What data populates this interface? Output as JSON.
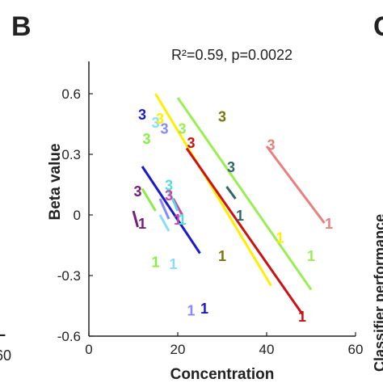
{
  "panel": {
    "label": "B",
    "next_label": "C"
  },
  "left_cut": {
    "tick": "60",
    "glyph": "L"
  },
  "right_cut": {
    "text": "Classifier performance"
  },
  "chart_data": {
    "type": "line",
    "annotation": "R²=0.59, p=0.0022",
    "xlabel": "Concentration",
    "ylabel": "Beta value",
    "xlim": [
      0,
      60
    ],
    "ylim": [
      -0.6,
      0.6
    ],
    "xticks": [
      0,
      20,
      40,
      60
    ],
    "yticks": [
      0.6,
      0.3,
      0,
      -0.3,
      -0.6
    ],
    "grid": false,
    "series": [
      {
        "color": "#7a1a7a",
        "line": [
          [
            10,
            0.02
          ],
          [
            11,
            -0.06
          ]
        ],
        "points": [
          {
            "label": "3",
            "x": 11,
            "y": 0.12
          },
          {
            "label": "1",
            "x": 12,
            "y": -0.04
          }
        ]
      },
      {
        "color": "#88ee44",
        "line": [
          [
            12,
            0.13
          ],
          [
            15,
            0.02
          ]
        ],
        "points": [
          {
            "label": "3",
            "x": 13,
            "y": 0.38
          },
          {
            "label": "1",
            "x": 15,
            "y": -0.23
          }
        ]
      },
      {
        "color": "#1a1acc",
        "line": [
          [
            12,
            0.24
          ],
          [
            25,
            -0.19
          ]
        ],
        "points": [
          {
            "label": "3",
            "x": 12,
            "y": 0.5
          },
          {
            "label": "1",
            "x": 26,
            "y": -0.46
          }
        ]
      },
      {
        "color": "#88ddff",
        "line": [
          [
            16,
            0.0
          ],
          [
            18,
            -0.08
          ]
        ],
        "points": [
          {
            "label": "3",
            "x": 15,
            "y": 0.46
          },
          {
            "label": "1",
            "x": 19,
            "y": -0.24
          }
        ]
      },
      {
        "color": "#8888ff",
        "line": [
          [
            16,
            0.08
          ],
          [
            18,
            -0.02
          ]
        ],
        "points": [
          {
            "label": "3",
            "x": 17,
            "y": 0.43
          },
          {
            "label": "1",
            "x": 23,
            "y": -0.47
          }
        ]
      },
      {
        "color": "#cc44aa",
        "line": [
          [
            19,
            0.08
          ],
          [
            21,
            0.0
          ]
        ],
        "points": [
          {
            "label": "3",
            "x": 18,
            "y": 0.1
          },
          {
            "label": "1",
            "x": 20,
            "y": -0.02
          }
        ]
      },
      {
        "color": "#55dddd",
        "line": [
          [
            18,
            0.12
          ],
          [
            20,
            0.02
          ]
        ],
        "points": [
          {
            "label": "3",
            "x": 18,
            "y": 0.15
          },
          {
            "label": "1",
            "x": 21,
            "y": -0.02
          }
        ]
      },
      {
        "color": "#ffee00",
        "line": [
          [
            15,
            0.6
          ],
          [
            41,
            -0.35
          ]
        ],
        "points": [
          {
            "label": "3",
            "x": 16,
            "y": 0.48
          },
          {
            "label": "1",
            "x": 43,
            "y": -0.11
          }
        ]
      },
      {
        "color": "#cc1111",
        "line": [
          [
            22,
            0.33
          ],
          [
            48,
            -0.49
          ]
        ],
        "points": [
          {
            "label": "3",
            "x": 23,
            "y": 0.36
          },
          {
            "label": "1",
            "x": 48,
            "y": -0.5
          }
        ]
      },
      {
        "color": "#99ee55",
        "line": [
          [
            20,
            0.58
          ],
          [
            50,
            -0.37
          ]
        ],
        "points": [
          {
            "label": "3",
            "x": 21,
            "y": 0.43
          },
          {
            "label": "1",
            "x": 50,
            "y": -0.2
          }
        ]
      },
      {
        "color": "#777711",
        "line": [],
        "points": [
          {
            "label": "3",
            "x": 30,
            "y": 0.49
          },
          {
            "label": "1",
            "x": 30,
            "y": -0.2
          }
        ]
      },
      {
        "color": "#336666",
        "line": [
          [
            31,
            0.14
          ],
          [
            33,
            0.08
          ]
        ],
        "points": [
          {
            "label": "3",
            "x": 32,
            "y": 0.24
          },
          {
            "label": "1",
            "x": 34,
            "y": 0.0
          }
        ]
      },
      {
        "color": "#e88080",
        "line": [
          [
            40,
            0.34
          ],
          [
            53,
            -0.04
          ]
        ],
        "points": [
          {
            "label": "3",
            "x": 41,
            "y": 0.35
          },
          {
            "label": "1",
            "x": 54,
            "y": -0.04
          }
        ]
      }
    ]
  }
}
